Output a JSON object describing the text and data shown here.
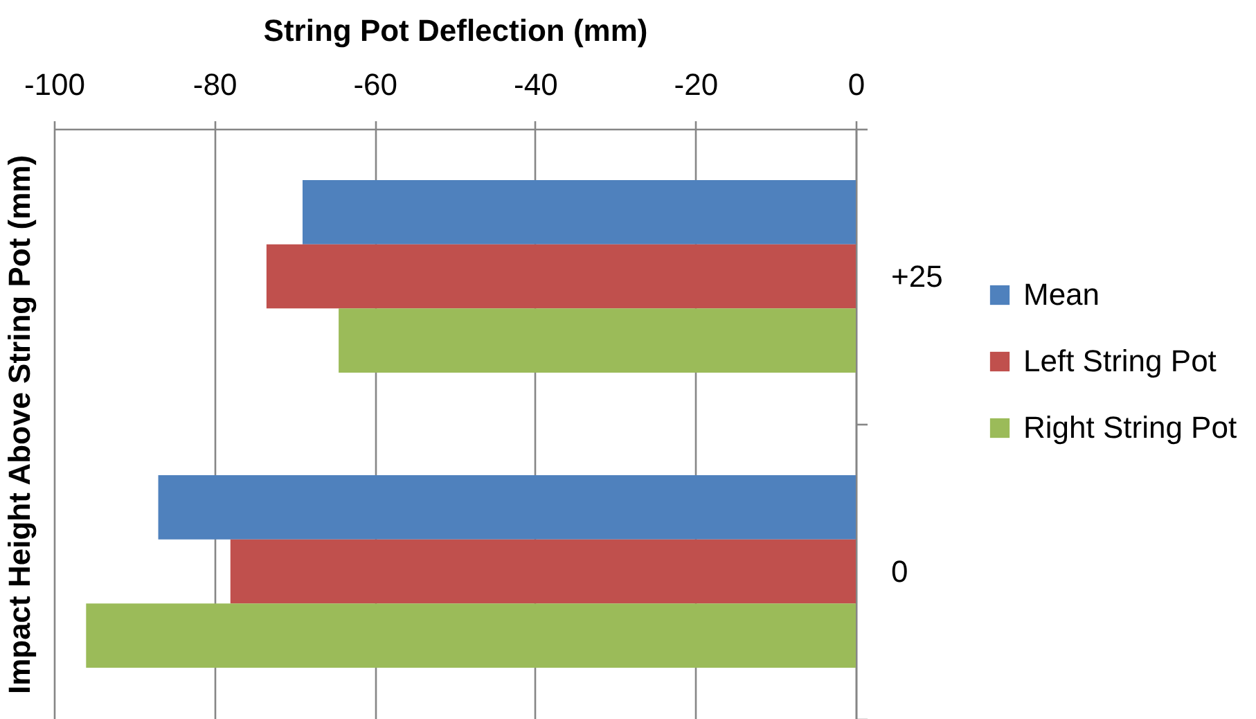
{
  "chart_data": {
    "type": "bar",
    "orientation": "horizontal",
    "xlabel": "String Pot Deflection (mm)",
    "ylabel": "Impact Height Above String Pot (mm)",
    "categories": [
      "+25",
      "0"
    ],
    "series": [
      {
        "name": "Mean",
        "color": "#4f81bd",
        "values": [
          -69,
          -87
        ]
      },
      {
        "name": "Left String Pot",
        "color": "#c0504d",
        "values": [
          -73.5,
          -78
        ]
      },
      {
        "name": "Right String Pot",
        "color": "#9bbb59",
        "values": [
          -64.5,
          -96
        ]
      }
    ],
    "xlim": [
      -100,
      0
    ],
    "xticks": [
      -100,
      -80,
      -60,
      -40,
      -20,
      0
    ],
    "grid": "x",
    "legend": "right"
  }
}
